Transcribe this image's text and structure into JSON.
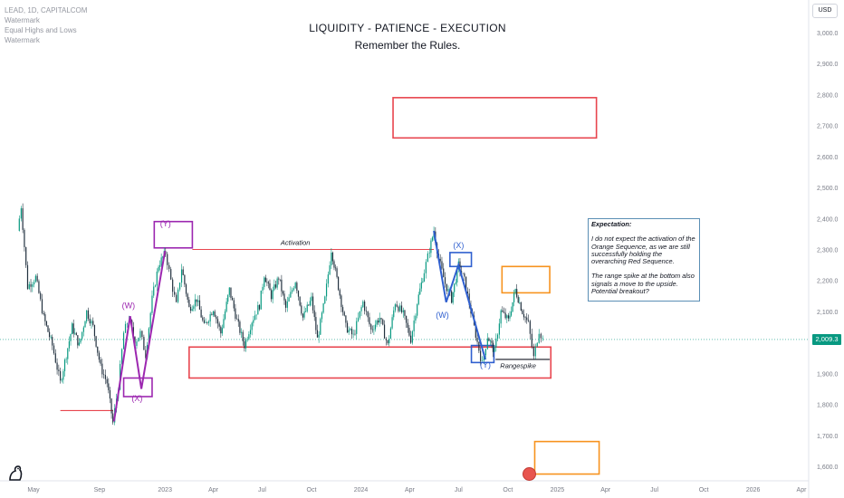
{
  "header": {
    "symbol_line": "LEAD, 1D, CAPITALCOM",
    "watermark_1": "Watermark",
    "equal_hl": "Equal Highs and Lows",
    "watermark_2": "Watermark"
  },
  "title": {
    "line1": "LIQUIDITY - PATIENCE - EXECUTION",
    "line2": "Remember the Rules."
  },
  "currency_button": "USD",
  "last_price": "2,009.3",
  "annotation": {
    "heading": "Expectation:",
    "para1": "I do not expect the activation of the Orange Sequence, as we are still successfully holding the overarching Red Sequence.",
    "para2": "The range spike at the bottom also signals a move to the upside. Potential breakout?"
  },
  "chart_data": {
    "type": "line",
    "ylim": [
      1570,
      3080
    ],
    "y_axis_ticks": [
      3000,
      2900,
      2800,
      2700,
      2600,
      2500,
      2400,
      2300,
      2200,
      2100,
      1900,
      1800,
      1700,
      1600
    ],
    "y_axis_tick_labels": [
      "3,000.0",
      "2,900.0",
      "2,800.0",
      "2,700.0",
      "2,600.0",
      "2,500.0",
      "2,400.0",
      "2,300.0",
      "2,200.0",
      "2,100.0",
      "1,900.0",
      "1,800.0",
      "1,700.0",
      "1,600.0"
    ],
    "x_axis_ticks": [
      {
        "date": "2022-05-01",
        "label": "May"
      },
      {
        "date": "2022-09-01",
        "label": "Sep"
      },
      {
        "date": "2023-01-01",
        "label": "2023"
      },
      {
        "date": "2023-04-01",
        "label": "Apr"
      },
      {
        "date": "2023-07-01",
        "label": "Jul"
      },
      {
        "date": "2023-10-01",
        "label": "Oct"
      },
      {
        "date": "2024-01-01",
        "label": "2024"
      },
      {
        "date": "2024-04-01",
        "label": "Apr"
      },
      {
        "date": "2024-07-01",
        "label": "Jul"
      },
      {
        "date": "2024-10-01",
        "label": "Oct"
      },
      {
        "date": "2025-01-01",
        "label": "2025"
      },
      {
        "date": "2025-04-01",
        "label": "Apr"
      },
      {
        "date": "2025-07-01",
        "label": "Jul"
      },
      {
        "date": "2025-10-01",
        "label": "Oct"
      },
      {
        "date": "2026-01-01",
        "label": "2026"
      },
      {
        "date": "2026-04-01",
        "label": "Apr"
      }
    ],
    "price_path": [
      [
        "2022-04-01",
        2360
      ],
      [
        "2022-04-08",
        2440
      ],
      [
        "2022-04-20",
        2180
      ],
      [
        "2022-05-05",
        2210
      ],
      [
        "2022-05-20",
        2080
      ],
      [
        "2022-06-05",
        1990
      ],
      [
        "2022-06-20",
        1870
      ],
      [
        "2022-07-01",
        1960
      ],
      [
        "2022-07-12",
        2050
      ],
      [
        "2022-07-25",
        1990
      ],
      [
        "2022-08-08",
        2100
      ],
      [
        "2022-08-20",
        2050
      ],
      [
        "2022-09-03",
        1920
      ],
      [
        "2022-09-15",
        1870
      ],
      [
        "2022-09-26",
        1740
      ],
      [
        "2022-10-06",
        1860
      ],
      [
        "2022-10-16",
        2030
      ],
      [
        "2022-10-26",
        2080
      ],
      [
        "2022-11-06",
        2000
      ],
      [
        "2022-11-16",
        2030
      ],
      [
        "2022-11-26",
        1960
      ],
      [
        "2022-12-08",
        2140
      ],
      [
        "2022-12-20",
        2250
      ],
      [
        "2023-01-02",
        2290
      ],
      [
        "2023-01-12",
        2200
      ],
      [
        "2023-01-22",
        2120
      ],
      [
        "2023-02-01",
        2240
      ],
      [
        "2023-02-15",
        2110
      ],
      [
        "2023-03-01",
        2140
      ],
      [
        "2023-03-15",
        2050
      ],
      [
        "2023-04-01",
        2110
      ],
      [
        "2023-04-15",
        2030
      ],
      [
        "2023-05-01",
        2170
      ],
      [
        "2023-05-15",
        2070
      ],
      [
        "2023-05-29",
        1990
      ],
      [
        "2023-06-12",
        2070
      ],
      [
        "2023-06-26",
        2120
      ],
      [
        "2023-07-05",
        2220
      ],
      [
        "2023-07-18",
        2150
      ],
      [
        "2023-08-01",
        2210
      ],
      [
        "2023-08-14",
        2110
      ],
      [
        "2023-09-01",
        2200
      ],
      [
        "2023-09-15",
        2080
      ],
      [
        "2023-10-01",
        2140
      ],
      [
        "2023-10-12",
        2010
      ],
      [
        "2023-10-26",
        2140
      ],
      [
        "2023-11-07",
        2300
      ],
      [
        "2023-11-20",
        2180
      ],
      [
        "2023-12-04",
        2050
      ],
      [
        "2023-12-18",
        2020
      ],
      [
        "2024-01-05",
        2130
      ],
      [
        "2024-01-20",
        2040
      ],
      [
        "2024-02-05",
        2080
      ],
      [
        "2024-02-20",
        1990
      ],
      [
        "2024-03-05",
        2130
      ],
      [
        "2024-03-20",
        2090
      ],
      [
        "2024-04-03",
        2010
      ],
      [
        "2024-04-15",
        2130
      ],
      [
        "2024-04-28",
        2230
      ],
      [
        "2024-05-08",
        2300
      ],
      [
        "2024-05-16",
        2360
      ],
      [
        "2024-05-25",
        2270
      ],
      [
        "2024-06-06",
        2190
      ],
      [
        "2024-06-18",
        2140
      ],
      [
        "2024-07-01",
        2250
      ],
      [
        "2024-07-12",
        2200
      ],
      [
        "2024-07-24",
        2100
      ],
      [
        "2024-08-05",
        2000
      ],
      [
        "2024-08-14",
        1930
      ],
      [
        "2024-08-24",
        2020
      ],
      [
        "2024-09-06",
        1970
      ],
      [
        "2024-09-18",
        2100
      ],
      [
        "2024-10-02",
        2070
      ],
      [
        "2024-10-15",
        2170
      ],
      [
        "2024-10-28",
        2100
      ],
      [
        "2024-11-08",
        2060
      ],
      [
        "2024-11-18",
        1950
      ],
      [
        "2024-11-28",
        2040
      ],
      [
        "2024-12-05",
        2009
      ]
    ],
    "drawings": {
      "rectangles": [
        {
          "name": "red-target-zone",
          "x0": "2024-03-01",
          "x1": "2025-03-15",
          "y0": 2660,
          "y1": 2790,
          "color": "#e8454e"
        },
        {
          "name": "red-range-zone",
          "x0": "2023-02-15",
          "x1": "2024-12-20",
          "y0": 1885,
          "y1": 1985,
          "color": "#e8454e"
        },
        {
          "name": "orange-sequence-box-upper",
          "x0": "2024-09-20",
          "x1": "2024-12-18",
          "y0": 2160,
          "y1": 2245,
          "color": "#f7931e"
        },
        {
          "name": "orange-sequence-box-lower",
          "x0": "2024-11-20",
          "x1": "2025-03-20",
          "y0": 1575,
          "y1": 1680,
          "color": "#f7931e"
        },
        {
          "name": "purple-y-box",
          "x0": "2022-12-12",
          "x1": "2023-02-21",
          "y0": 2305,
          "y1": 2390,
          "color": "#9c27b0"
        },
        {
          "name": "purple-x-box",
          "x0": "2022-10-16",
          "x1": "2022-12-08",
          "y0": 1825,
          "y1": 1885,
          "color": "#9c27b0"
        },
        {
          "name": "blue-x-box",
          "x0": "2024-06-15",
          "x1": "2024-07-25",
          "y0": 2245,
          "y1": 2290,
          "color": "#2f5fcf"
        },
        {
          "name": "blue-y-box",
          "x0": "2024-07-25",
          "x1": "2024-09-05",
          "y0": 1935,
          "y1": 1990,
          "color": "#2f5fcf"
        }
      ],
      "lines": [
        {
          "name": "activation-line",
          "x0": "2023-02-21",
          "x1": "2024-05-16",
          "y": 2300,
          "color": "#e8454e"
        },
        {
          "name": "may-low-line",
          "x0": "2022-06-20",
          "x1": "2022-09-26",
          "y": 1780,
          "color": "#e8454e"
        },
        {
          "name": "rangespike-line",
          "x0": "2024-09-08",
          "x1": "2024-12-18",
          "y": 1945,
          "color": "#131722"
        }
      ],
      "wave_lines": [
        {
          "name": "purple-wave",
          "color": "#9c27b0",
          "points": [
            [
              "2022-09-28",
              1745
            ],
            [
              "2022-10-28",
              2085
            ],
            [
              "2022-11-18",
              1850
            ],
            [
              "2023-01-01",
              2295
            ]
          ]
        },
        {
          "name": "blue-wave",
          "color": "#2f5fcf",
          "points": [
            [
              "2024-05-16",
              2360
            ],
            [
              "2024-06-08",
              2130
            ],
            [
              "2024-07-01",
              2250
            ],
            [
              "2024-08-20",
              1945
            ]
          ]
        }
      ],
      "labels": [
        {
          "name": "label-w-purple",
          "text": "(W)",
          "x": "2022-10-25",
          "y": 2110,
          "color": "#9c27b0"
        },
        {
          "name": "label-x-purple",
          "text": "(X)",
          "x": "2022-11-10",
          "y": 1810,
          "color": "#9c27b0"
        },
        {
          "name": "label-y-purple",
          "text": "(Y)",
          "x": "2023-01-02",
          "y": 2375,
          "color": "#9c27b0"
        },
        {
          "name": "label-activation",
          "text": "Activation",
          "x": "2023-09-01",
          "y": 2315,
          "color": "#131722"
        },
        {
          "name": "label-w-blue",
          "text": "(W)",
          "x": "2024-06-01",
          "y": 2080,
          "color": "#2f5fcf"
        },
        {
          "name": "label-x-blue",
          "text": "(X)",
          "x": "2024-07-01",
          "y": 2305,
          "color": "#2f5fcf"
        },
        {
          "name": "label-y-blue",
          "text": "(Y)",
          "x": "2024-08-20",
          "y": 1918,
          "color": "#2f5fcf"
        },
        {
          "name": "label-rangespike",
          "text": "Rangespike",
          "x": "2024-10-20",
          "y": 1917,
          "color": "#131722"
        }
      ]
    },
    "last_price_value": 2009.3,
    "grid": false
  },
  "colors": {
    "up": "#089981",
    "down": "#22313f",
    "axis_text": "#787b86",
    "last_price_line": "#089981"
  }
}
